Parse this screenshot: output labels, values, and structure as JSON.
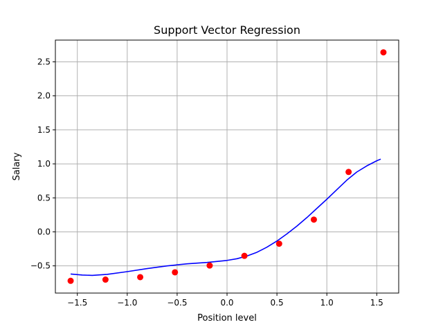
{
  "chart_data": {
    "type": "scatter",
    "title": "Support Vector Regression",
    "xlabel": "Position level",
    "ylabel": "Salary",
    "xlim": [
      -1.72,
      1.72
    ],
    "ylim": [
      -0.9,
      2.82
    ],
    "x_ticks": [
      -1.5,
      -1.0,
      -0.5,
      0.0,
      0.5,
      1.0,
      1.5
    ],
    "x_tick_labels": [
      "−1.5",
      "−1.0",
      "−0.5",
      "0.0",
      "0.5",
      "1.0",
      "1.5"
    ],
    "y_ticks": [
      -0.5,
      0.0,
      0.5,
      1.0,
      1.5,
      2.0,
      2.5
    ],
    "y_tick_labels": [
      "−0.5",
      "0.0",
      "0.5",
      "1.0",
      "1.5",
      "2.0",
      "2.5"
    ],
    "grid": true,
    "series": [
      {
        "type": "scatter",
        "color": "#ff0000",
        "x": [
          -1.567,
          -1.218,
          -0.87,
          -0.522,
          -0.174,
          0.174,
          0.522,
          0.87,
          1.218,
          1.567
        ],
        "y": [
          -0.72,
          -0.702,
          -0.666,
          -0.595,
          -0.495,
          -0.353,
          -0.174,
          0.18,
          0.881,
          2.64
        ]
      },
      {
        "type": "line",
        "color": "#0000ff",
        "x": [
          -1.567,
          -1.45,
          -1.35,
          -1.2,
          -1.0,
          -0.8,
          -0.6,
          -0.4,
          -0.2,
          0.0,
          0.1,
          0.2,
          0.3,
          0.4,
          0.5,
          0.6,
          0.7,
          0.8,
          0.9,
          1.0,
          1.1,
          1.2,
          1.3,
          1.4,
          1.5,
          1.54
        ],
        "y": [
          -0.62,
          -0.635,
          -0.64,
          -0.625,
          -0.585,
          -0.54,
          -0.5,
          -0.47,
          -0.45,
          -0.42,
          -0.395,
          -0.355,
          -0.3,
          -0.225,
          -0.135,
          -0.03,
          0.085,
          0.21,
          0.345,
          0.48,
          0.62,
          0.76,
          0.88,
          0.97,
          1.045,
          1.07
        ]
      }
    ]
  }
}
